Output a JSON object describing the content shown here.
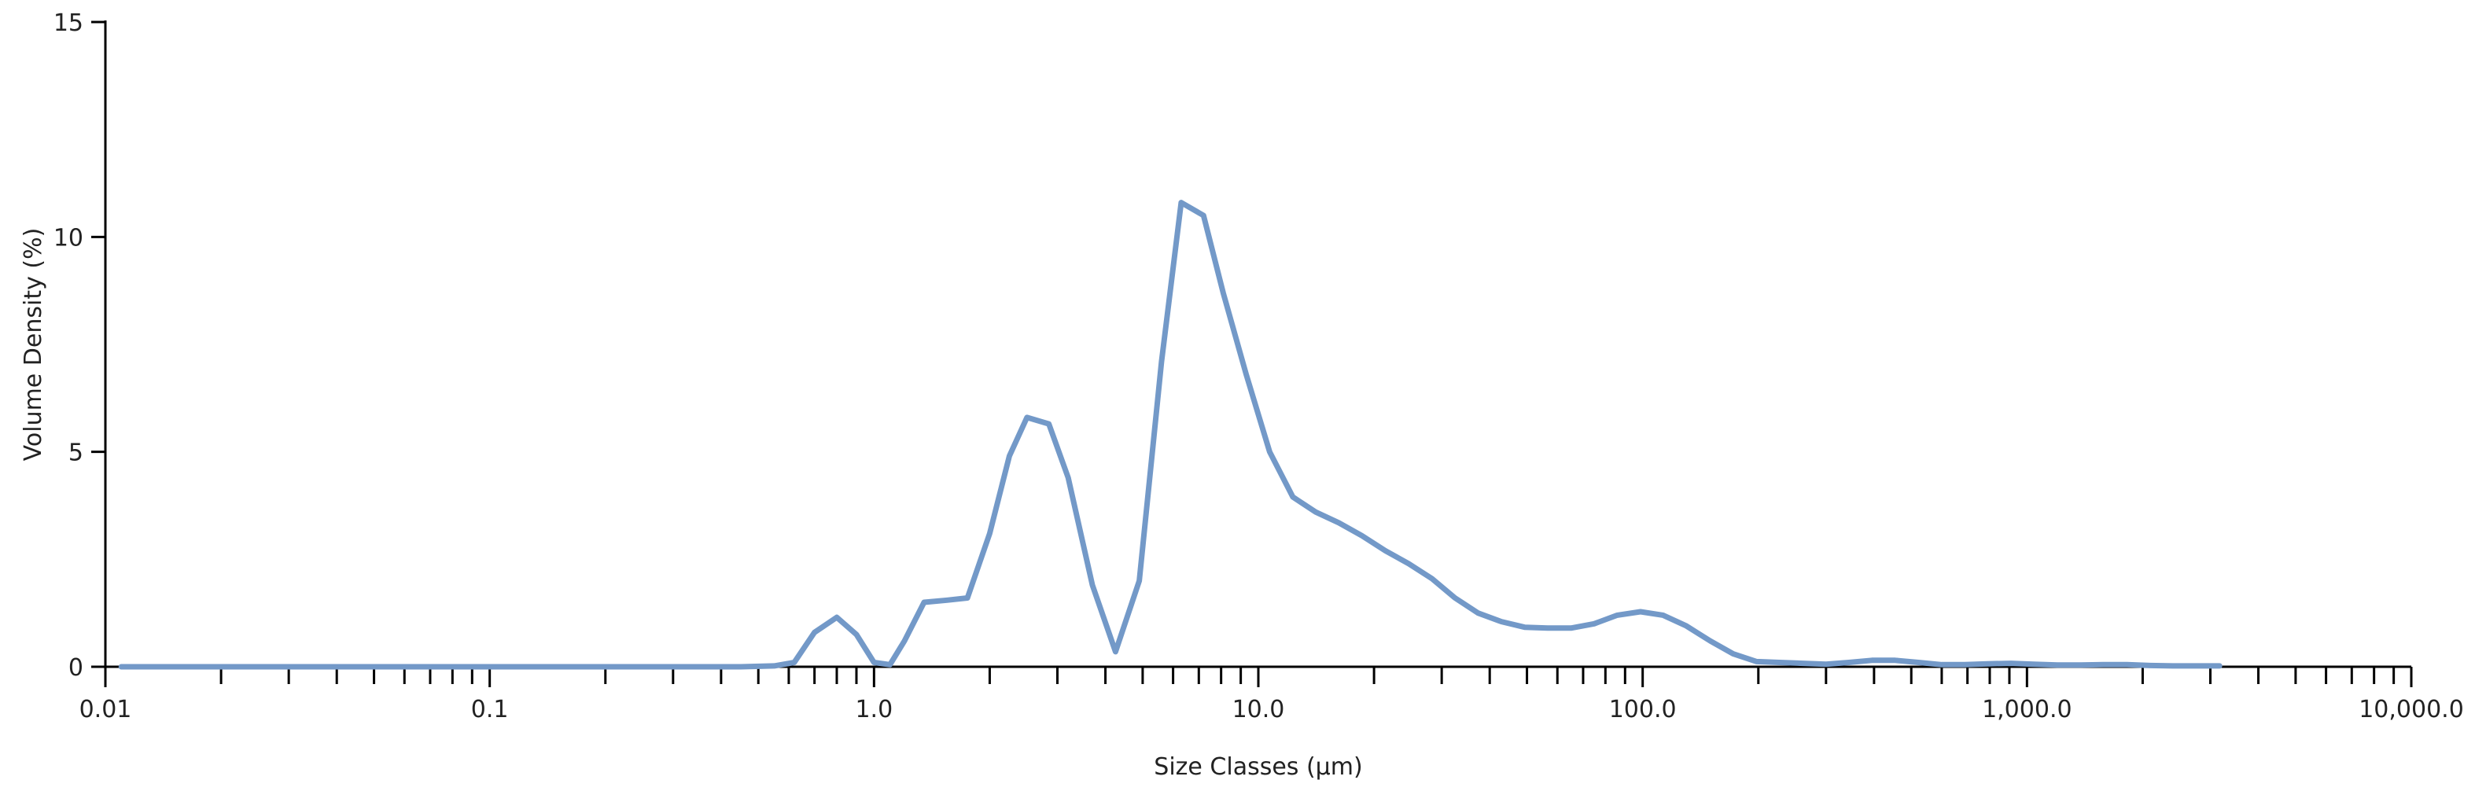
{
  "chart_data": {
    "type": "line",
    "title": "",
    "xlabel": "Size Classes (μm)",
    "ylabel": "Volume Density (%)",
    "x_scale": "log",
    "xlim": [
      0.01,
      10000
    ],
    "ylim": [
      0,
      15
    ],
    "grid": false,
    "legend": "none",
    "line_color": "#7399c8",
    "x_ticks": [
      {
        "value": 0.01,
        "label": "0.01"
      },
      {
        "value": 0.1,
        "label": "0.1"
      },
      {
        "value": 1,
        "label": "1.0"
      },
      {
        "value": 10,
        "label": "10.0"
      },
      {
        "value": 100,
        "label": "100.0"
      },
      {
        "value": 1000,
        "label": "1,000.0"
      },
      {
        "value": 10000,
        "label": "10,000.0"
      }
    ],
    "y_ticks": [
      {
        "value": 0,
        "label": "0"
      },
      {
        "value": 5,
        "label": "5"
      },
      {
        "value": 10,
        "label": "10"
      },
      {
        "value": 15,
        "label": "15"
      }
    ],
    "series": [
      {
        "x": [
          0.011,
          0.1,
          0.45,
          0.55,
          0.62,
          0.7,
          0.8,
          0.9,
          1.0,
          1.1,
          1.2,
          1.35,
          1.55,
          1.75,
          2.0,
          2.25,
          2.5,
          2.85,
          3.2,
          3.7,
          4.25,
          4.9,
          5.6,
          6.3,
          7.2,
          8.1,
          9.3,
          10.7,
          12.3,
          14.1,
          16.2,
          18.6,
          21.4,
          24.6,
          28.3,
          32.5,
          37.3,
          42.9,
          49.3,
          56.6,
          65.1,
          74.8,
          85.9,
          98.7,
          113.0,
          130.0,
          150.0,
          172.0,
          198.0,
          227.0,
          261.0,
          300.0,
          344.0,
          395.0,
          454.0,
          522.0,
          600.0,
          689.0,
          791.0,
          909.0,
          1040.0,
          1200.0,
          1380.0,
          1580.0,
          1820.0,
          2090.0,
          2400.0,
          2760.0,
          3170.0
        ],
        "values": [
          0,
          0,
          0,
          0.02,
          0.1,
          0.8,
          1.15,
          0.75,
          0.1,
          0.05,
          0.6,
          1.5,
          1.55,
          1.6,
          3.1,
          4.9,
          5.8,
          5.65,
          4.4,
          1.9,
          0.35,
          2.0,
          7.1,
          10.8,
          10.5,
          8.7,
          6.8,
          5.0,
          3.95,
          3.6,
          3.35,
          3.05,
          2.7,
          2.4,
          2.05,
          1.6,
          1.25,
          1.05,
          0.92,
          0.9,
          0.9,
          1.0,
          1.2,
          1.28,
          1.2,
          0.95,
          0.6,
          0.3,
          0.12,
          0.1,
          0.08,
          0.06,
          0.1,
          0.15,
          0.15,
          0.1,
          0.05,
          0.05,
          0.07,
          0.08,
          0.06,
          0.04,
          0.04,
          0.05,
          0.05,
          0.03,
          0.02,
          0.02,
          0.02
        ]
      }
    ]
  }
}
